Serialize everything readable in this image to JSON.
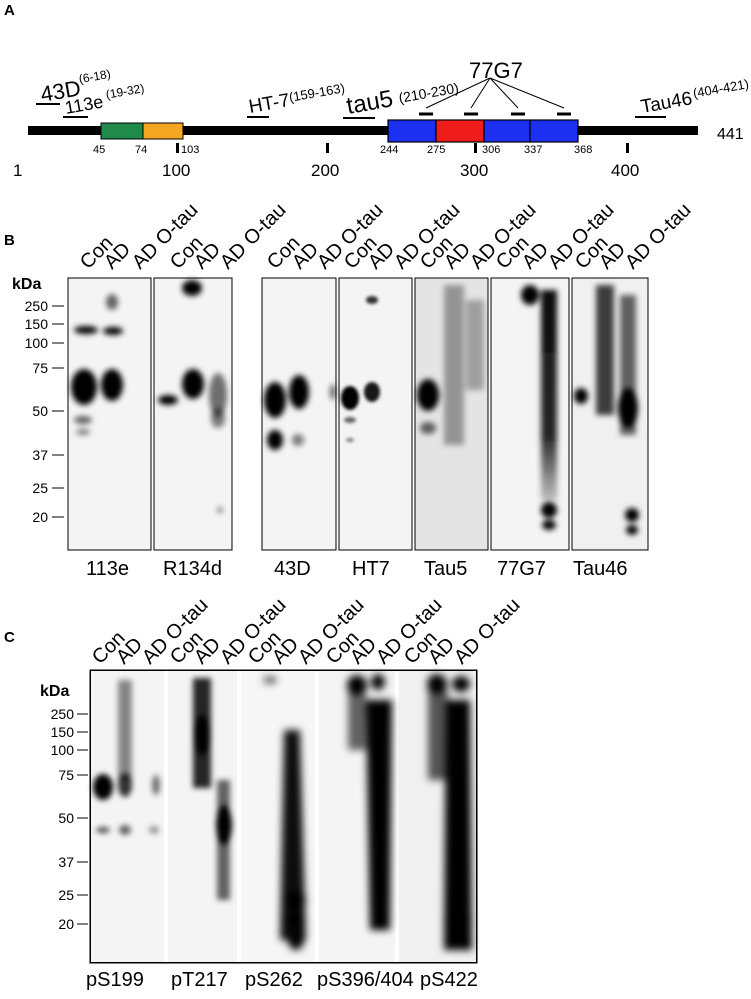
{
  "panels": {
    "A": "A",
    "B": "B",
    "C": "C"
  },
  "panel_a": {
    "antibodies": [
      {
        "name": "43D",
        "range": "(6-18)"
      },
      {
        "name": "113e",
        "range": "(19-32)"
      },
      {
        "name": "HT-7",
        "range": "(159-163)"
      },
      {
        "name": "tau5",
        "range": "(210-230)"
      },
      {
        "name": "77G7",
        "range": ""
      },
      {
        "name": "Tau46",
        "range": "(404-421)"
      }
    ],
    "length_label": "441",
    "axis_ticks": [
      "1",
      "100",
      "200",
      "300",
      "400"
    ],
    "domain_boundaries": [
      "45",
      "74",
      "103",
      "244",
      "275",
      "306",
      "337",
      "368"
    ],
    "colors": {
      "n1": "#1f8a4c",
      "n2": "#f5a623",
      "repeat": "#1d2ff0",
      "repeat_highlight": "#f01c1c"
    }
  },
  "lane_header": [
    "Con",
    "AD",
    "AD O-tau"
  ],
  "kda_label": "kDa",
  "panel_b": {
    "markers": [
      "250",
      "150",
      "100",
      "75",
      "50",
      "37",
      "25",
      "20"
    ],
    "blots": [
      "113e",
      "R134d",
      "43D",
      "HT7",
      "Tau5",
      "77G7",
      "Tau46"
    ]
  },
  "panel_c": {
    "markers": [
      "250",
      "150",
      "100",
      "75",
      "50",
      "37",
      "25",
      "20"
    ],
    "blots": [
      "pS199",
      "pT217",
      "pS262",
      "pS396/404",
      "pS422"
    ]
  }
}
